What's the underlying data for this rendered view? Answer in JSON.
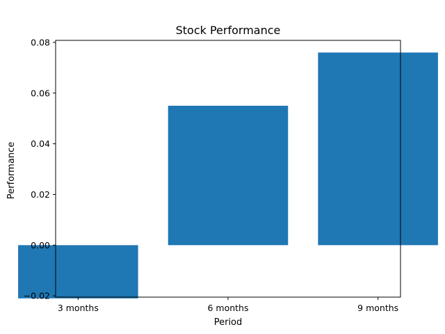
{
  "chart_data": {
    "type": "bar",
    "title": "Stock Performance",
    "xlabel": "Period",
    "ylabel": "Performance",
    "categories": [
      "3 months",
      "6 months",
      "9 months"
    ],
    "values": [
      -0.021,
      0.055,
      0.076
    ],
    "x_tick_labels": [
      "3 months",
      "6 months",
      "9 months"
    ],
    "y_tick_labels": [
      "−0.02",
      "0.00",
      "0.02",
      "0.04",
      "0.06",
      "0.08"
    ],
    "y_ticks": [
      -0.02,
      0.0,
      0.02,
      0.04,
      0.06,
      0.08
    ],
    "ylim": [
      -0.0205,
      0.0808
    ],
    "bar_color": "#1f77b4",
    "grid": false,
    "legend": "none"
  }
}
